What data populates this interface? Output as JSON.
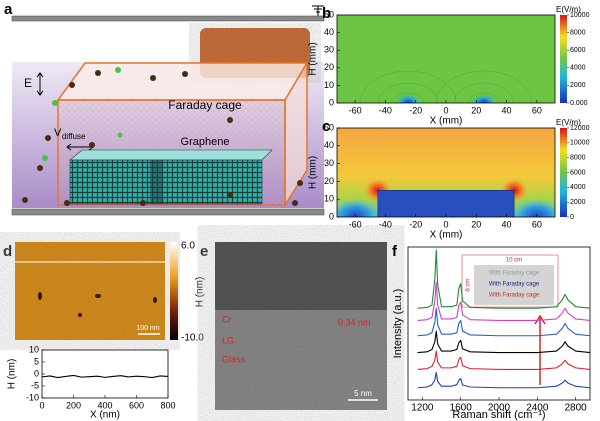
{
  "panel_a": {
    "label": "a",
    "e_label": "E",
    "cage_label": "Faraday cage",
    "v_label": "V",
    "v_subscript": "diffuse",
    "graphene_label": "Graphene"
  },
  "panel_d_image": {
    "label": "d",
    "colorbar_max": "6.0",
    "colorbar_min": "-10.0",
    "colorbar_title": "H (nm)",
    "scale_bar": "100 nm"
  },
  "panel_e": {
    "label": "e",
    "layers": [
      "Cr",
      "LG",
      "Glass"
    ],
    "spacing": "0.34 nm",
    "scale_bar": "5 nm"
  },
  "chart_data": [
    {
      "type": "heatmap",
      "label": "b",
      "xlabel": "X (mm)",
      "ylabel": "H (mm)",
      "xlim": [
        -72,
        72
      ],
      "ylim": [
        0,
        50
      ],
      "xticks": [
        -60,
        -40,
        -20,
        0,
        20,
        40,
        60
      ],
      "yticks": [
        0,
        10,
        20,
        30,
        40,
        50
      ],
      "colorbar_title": "E(V/m)",
      "colorbar_lim": [
        0,
        10000
      ],
      "colorbar_ticks": [
        10000,
        8000,
        6000,
        4000,
        2000,
        {
          "value": 0,
          "label": "0.000"
        }
      ]
    },
    {
      "type": "heatmap",
      "label": "c",
      "xlabel": "X (mm)",
      "ylabel": "H (mm)",
      "xlim": [
        -72,
        72
      ],
      "ylim": [
        0,
        50
      ],
      "xticks": [
        -60,
        -40,
        -20,
        0,
        20,
        40,
        60
      ],
      "yticks": [
        0,
        10,
        20,
        30,
        40,
        50
      ],
      "colorbar_title": "E(V/m)",
      "colorbar_lim": [
        0,
        12000
      ],
      "colorbar_ticks": [
        12000,
        10000,
        8000,
        6000,
        4000,
        2000,
        0
      ]
    },
    {
      "type": "line",
      "xlabel": "X (nm)",
      "ylabel": "H (nm)",
      "xlim": [
        0,
        800
      ],
      "ylim": [
        -10,
        10
      ],
      "xticks": [
        0,
        200,
        400,
        600,
        800
      ],
      "yticks": [
        -10,
        -5,
        0,
        5,
        10
      ],
      "color": "#000000",
      "x": [
        0,
        50,
        100,
        150,
        200,
        250,
        300,
        350,
        400,
        450,
        500,
        550,
        600,
        650,
        700,
        750,
        800
      ],
      "values": [
        -1.2,
        -0.8,
        -1.5,
        -1.0,
        -0.6,
        -1.3,
        -1.1,
        -0.9,
        -1.4,
        -1.0,
        -0.7,
        -1.2,
        -0.9,
        -1.1,
        -1.5,
        -0.8,
        -1.0
      ]
    },
    {
      "type": "line",
      "label": "f",
      "xlabel": "Raman shift (cm⁻¹)",
      "ylabel": "Intensity (a.u.)",
      "xlim": [
        1050,
        2950
      ],
      "ylim": [
        0,
        100
      ],
      "xticks": [
        1200,
        1600,
        2000,
        2400,
        2800
      ],
      "inset_width": "10 cm",
      "inset_height": "6 cm",
      "inset_labels": [
        "With Faraday cage",
        "With Faraday cage",
        "With Faraday cage"
      ],
      "x": [
        1150,
        1250,
        1300,
        1330,
        1345,
        1360,
        1400,
        1500,
        1560,
        1580,
        1600,
        1620,
        1700,
        2000,
        2400,
        2600,
        2660,
        2690,
        2720,
        2800,
        2950
      ],
      "series": [
        {
          "color": "#1f3fbf",
          "values": [
            8,
            8.5,
            10,
            13,
            18,
            12,
            9,
            9,
            10,
            12.8,
            14,
            9.8,
            8.5,
            8,
            8,
            9,
            11,
            13,
            11,
            9,
            8
          ]
        },
        {
          "color": "#e0202a",
          "values": [
            20,
            20.5,
            22,
            26,
            32,
            24.8,
            21,
            21,
            22,
            26.4,
            28,
            22.4,
            20.5,
            20,
            20,
            21,
            23.6,
            26,
            23.6,
            21,
            20
          ]
        },
        {
          "color": "#000000",
          "values": [
            31,
            31.5,
            33,
            38,
            45,
            36.6,
            32,
            32,
            33,
            37.4,
            39,
            33.4,
            31.5,
            31,
            31,
            32,
            35.2,
            38,
            35.2,
            32,
            31
          ]
        },
        {
          "color": "#2a5bd7",
          "values": [
            42,
            42.5,
            44,
            51,
            60,
            49.2,
            43,
            43,
            44,
            50,
            52,
            45,
            42.5,
            42,
            42,
            43,
            46.8,
            50,
            46.8,
            43,
            42
          ]
        },
        {
          "color": "#d23fc8",
          "values": [
            52,
            52.5,
            54,
            64.5,
            77,
            62,
            53,
            53,
            54,
            61.6,
            64,
            55.6,
            52.5,
            52,
            52,
            53,
            56.8,
            60,
            56.8,
            53,
            52
          ]
        },
        {
          "color": "#1f8a3a",
          "values": [
            60,
            60.5,
            62,
            79,
            98,
            75.2,
            61,
            61,
            62,
            72.8,
            76,
            64.8,
            60.5,
            60,
            60,
            61,
            65.4,
            69,
            65.4,
            61,
            60
          ]
        }
      ]
    }
  ]
}
